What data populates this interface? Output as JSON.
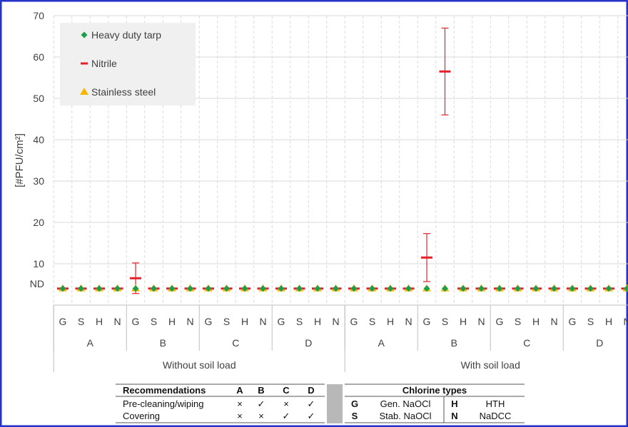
{
  "chart_data": {
    "type": "scatter",
    "ylabel": "[#PFU/cm²]",
    "ylim": [
      0,
      70
    ],
    "yticks": [
      10,
      20,
      30,
      40,
      50,
      60,
      70
    ],
    "nd_label": "ND",
    "nd_value": 4,
    "groups": [
      "Without soil load",
      "With soil load"
    ],
    "subgroups": [
      "A",
      "B",
      "C",
      "D"
    ],
    "categories": [
      "G",
      "S",
      "H",
      "N"
    ],
    "legend_placement": "top-left",
    "series": [
      {
        "name": "Heavy duty tarp",
        "marker": "diamond",
        "color": "#1e9e4a",
        "values": [
          4,
          4,
          4,
          4,
          4,
          4,
          4,
          4,
          4,
          4,
          4,
          4,
          4,
          4,
          4,
          4,
          4,
          4,
          4,
          4,
          4,
          4,
          4,
          4,
          4,
          4,
          4,
          4,
          4,
          4,
          4,
          4
        ],
        "errors": [
          0,
          0,
          0,
          0,
          0,
          0,
          0,
          0,
          0,
          0,
          0,
          0,
          0,
          0,
          0,
          0,
          0,
          0,
          0,
          0,
          0,
          0,
          0,
          0,
          0,
          0,
          0,
          0,
          0,
          0,
          0,
          0
        ]
      },
      {
        "name": "Nitrile",
        "marker": "dash",
        "color": "#e8202a",
        "values": [
          4,
          4,
          4,
          4,
          6.5,
          4,
          4,
          4,
          4,
          4,
          4,
          4,
          4,
          4,
          4,
          4,
          4,
          4,
          4,
          4,
          11.5,
          56.5,
          4,
          4,
          4,
          4,
          4,
          4,
          4,
          4,
          4,
          4
        ],
        "errors": [
          0,
          0,
          0,
          0,
          3.7,
          0,
          0,
          0,
          0,
          0,
          0,
          0,
          0,
          0,
          0,
          0,
          0,
          0,
          0,
          0,
          5.8,
          10.5,
          0,
          0,
          0,
          0,
          0,
          0,
          0,
          0,
          0,
          0
        ]
      },
      {
        "name": "Stainless steel",
        "marker": "triangle",
        "color": "#f5b800",
        "values": [
          4,
          4,
          4,
          4,
          4,
          4,
          4,
          4,
          4,
          4,
          4,
          4,
          4,
          4,
          4,
          4,
          4,
          4,
          4,
          4,
          4,
          4,
          4,
          4,
          4,
          4,
          4,
          4,
          4,
          4,
          4,
          4
        ],
        "errors": [
          0,
          0,
          0,
          0,
          0,
          0,
          0,
          0,
          0,
          0,
          0,
          0,
          0,
          0,
          0,
          0,
          0,
          0,
          0,
          0,
          0,
          0,
          0,
          0,
          0,
          0,
          0,
          0,
          0,
          0,
          0,
          0
        ]
      }
    ]
  },
  "recommendations_table": {
    "header": [
      "Recommendations",
      "A",
      "B",
      "C",
      "D"
    ],
    "rows": [
      [
        "Pre-cleaning/wiping",
        "×",
        "✓",
        "×",
        "✓"
      ],
      [
        "Covering",
        "×",
        "×",
        "✓",
        "✓"
      ]
    ]
  },
  "chlorine_table": {
    "title": "Chlorine types",
    "rows": [
      [
        "G",
        "Gen. NaOCl",
        "H",
        "HTH"
      ],
      [
        "S",
        "Stab. NaOCl",
        "N",
        "NaDCC"
      ]
    ]
  }
}
